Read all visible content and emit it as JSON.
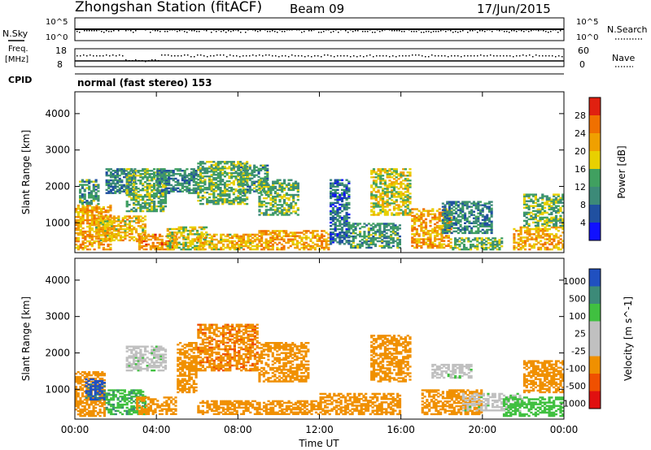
{
  "header": {
    "station": "Zhongshan Station (fitACF)",
    "beam": "Beam 09",
    "date": "17/Jun/2015"
  },
  "strip_labels": {
    "nsky": "N.Sky",
    "freq_top": "Freq.",
    "freq_unit": "[MHz]",
    "cpid": "CPID",
    "nsearch": "N.Search",
    "nave": "Nave",
    "cpid_value": "normal (fast stereo) 153"
  },
  "strip_ticks": {
    "nsky_left": [
      "10^5",
      "10^0"
    ],
    "nsky_right": [
      "10^5",
      "10^0"
    ],
    "freq_left": [
      "18",
      "8"
    ],
    "nave_right": [
      "60",
      "0"
    ]
  },
  "colors": {
    "power": [
      "#1010ff",
      "#2050a0",
      "#3c8a78",
      "#40a060",
      "#e8d000",
      "#f0a000",
      "#f07000",
      "#e02010"
    ],
    "velocity": [
      "#e01010",
      "#f05000",
      "#f09000",
      "#c0c0c0",
      "#c0c0c0",
      "#40c040",
      "#3c8a78",
      "#2050c0"
    ]
  },
  "chart_data": [
    {
      "type": "heatmap",
      "title": "Power",
      "xlabel": "Time UT",
      "ylabel": "Slant Range [km]",
      "x_ticks": [
        "00:00",
        "04:00",
        "08:00",
        "12:00",
        "16:00",
        "20:00",
        "00:00"
      ],
      "y_ticks": [
        "1000",
        "2000",
        "3000",
        "4000"
      ],
      "ylim": [
        180,
        4600
      ],
      "xlim_hours": [
        0,
        24
      ],
      "colorbar_label": "Power [dB]",
      "colorbar_ticks": [
        "4",
        "8",
        "12",
        "16",
        "20",
        "24",
        "28"
      ],
      "colorbar_range": [
        0,
        32
      ],
      "patches": [
        {
          "t0": 0.0,
          "t1": 1.8,
          "r0": 250,
          "r1": 1500,
          "value": 22
        },
        {
          "t0": 0.2,
          "t1": 1.2,
          "r0": 1500,
          "r1": 2200,
          "value": 12
        },
        {
          "t0": 1.0,
          "t1": 3.5,
          "r0": 500,
          "r1": 1200,
          "value": 20
        },
        {
          "t0": 1.5,
          "t1": 3.0,
          "r0": 1800,
          "r1": 2500,
          "value": 9
        },
        {
          "t0": 2.5,
          "t1": 4.5,
          "r0": 1300,
          "r1": 2500,
          "value": 14
        },
        {
          "t0": 3.0,
          "t1": 5.0,
          "r0": 250,
          "r1": 700,
          "value": 24
        },
        {
          "t0": 4.0,
          "t1": 6.0,
          "r0": 1800,
          "r1": 2500,
          "value": 10
        },
        {
          "t0": 4.5,
          "t1": 6.5,
          "r0": 250,
          "r1": 900,
          "value": 18
        },
        {
          "t0": 6.0,
          "t1": 8.5,
          "r0": 1500,
          "r1": 2700,
          "value": 14
        },
        {
          "t0": 6.0,
          "t1": 9.0,
          "r0": 250,
          "r1": 700,
          "value": 20
        },
        {
          "t0": 8.0,
          "t1": 9.5,
          "r0": 1800,
          "r1": 2600,
          "value": 12
        },
        {
          "t0": 9.0,
          "t1": 11.0,
          "r0": 1200,
          "r1": 2200,
          "value": 14
        },
        {
          "t0": 9.0,
          "t1": 12.5,
          "r0": 250,
          "r1": 800,
          "value": 22
        },
        {
          "t0": 12.5,
          "t1": 13.5,
          "r0": 400,
          "r1": 2200,
          "value": 8
        },
        {
          "t0": 13.5,
          "t1": 16.0,
          "r0": 300,
          "r1": 1000,
          "value": 12
        },
        {
          "t0": 14.5,
          "t1": 16.5,
          "r0": 1200,
          "r1": 2500,
          "value": 18
        },
        {
          "t0": 16.5,
          "t1": 18.5,
          "r0": 300,
          "r1": 1400,
          "value": 22
        },
        {
          "t0": 18.0,
          "t1": 20.5,
          "r0": 700,
          "r1": 1600,
          "value": 10
        },
        {
          "t0": 18.5,
          "t1": 21.0,
          "r0": 250,
          "r1": 600,
          "value": 14
        },
        {
          "t0": 21.5,
          "t1": 24.0,
          "r0": 250,
          "r1": 900,
          "value": 22
        },
        {
          "t0": 22.0,
          "t1": 24.0,
          "r0": 900,
          "r1": 1800,
          "value": 14
        }
      ]
    },
    {
      "type": "heatmap",
      "title": "Velocity",
      "xlabel": "Time UT",
      "ylabel": "Slant Range [km]",
      "x_ticks": [
        "00:00",
        "04:00",
        "08:00",
        "12:00",
        "16:00",
        "20:00",
        "00:00"
      ],
      "y_ticks": [
        "1000",
        "2000",
        "3000",
        "4000"
      ],
      "ylim": [
        180,
        4600
      ],
      "xlim_hours": [
        0,
        24
      ],
      "colorbar_label": "Velocity [m s^-1]",
      "colorbar_ticks": [
        "1000",
        "500",
        "100",
        "25",
        "-25",
        "-100",
        "-500",
        "-1000"
      ],
      "patches": [
        {
          "t0": 0.0,
          "t1": 1.5,
          "r0": 250,
          "r1": 1500,
          "value": -300
        },
        {
          "t0": 0.5,
          "t1": 1.5,
          "r0": 700,
          "r1": 1300,
          "value": 700
        },
        {
          "t0": 1.5,
          "t1": 3.5,
          "r0": 300,
          "r1": 1000,
          "value": 80
        },
        {
          "t0": 2.5,
          "t1": 4.5,
          "r0": 1500,
          "r1": 2200,
          "value": 0
        },
        {
          "t0": 3.0,
          "t1": 5.0,
          "r0": 300,
          "r1": 800,
          "value": -200
        },
        {
          "t0": 5.0,
          "t1": 6.0,
          "r0": 900,
          "r1": 2300,
          "value": -300
        },
        {
          "t0": 6.0,
          "t1": 9.0,
          "r0": 1500,
          "r1": 2800,
          "value": -400
        },
        {
          "t0": 6.0,
          "t1": 12.0,
          "r0": 300,
          "r1": 700,
          "value": -300
        },
        {
          "t0": 9.0,
          "t1": 11.5,
          "r0": 1200,
          "r1": 2300,
          "value": -300
        },
        {
          "t0": 12.0,
          "t1": 16.0,
          "r0": 300,
          "r1": 900,
          "value": -300
        },
        {
          "t0": 14.5,
          "t1": 16.5,
          "r0": 1200,
          "r1": 2500,
          "value": -300
        },
        {
          "t0": 17.5,
          "t1": 19.5,
          "r0": 1300,
          "r1": 1700,
          "value": 0
        },
        {
          "t0": 17.0,
          "t1": 20.0,
          "r0": 300,
          "r1": 1000,
          "value": -200
        },
        {
          "t0": 19.0,
          "t1": 22.0,
          "r0": 400,
          "r1": 900,
          "value": 0
        },
        {
          "t0": 21.0,
          "t1": 24.0,
          "r0": 250,
          "r1": 800,
          "value": 70
        },
        {
          "t0": 22.0,
          "t1": 24.0,
          "r0": 900,
          "r1": 1800,
          "value": -200
        }
      ]
    }
  ]
}
